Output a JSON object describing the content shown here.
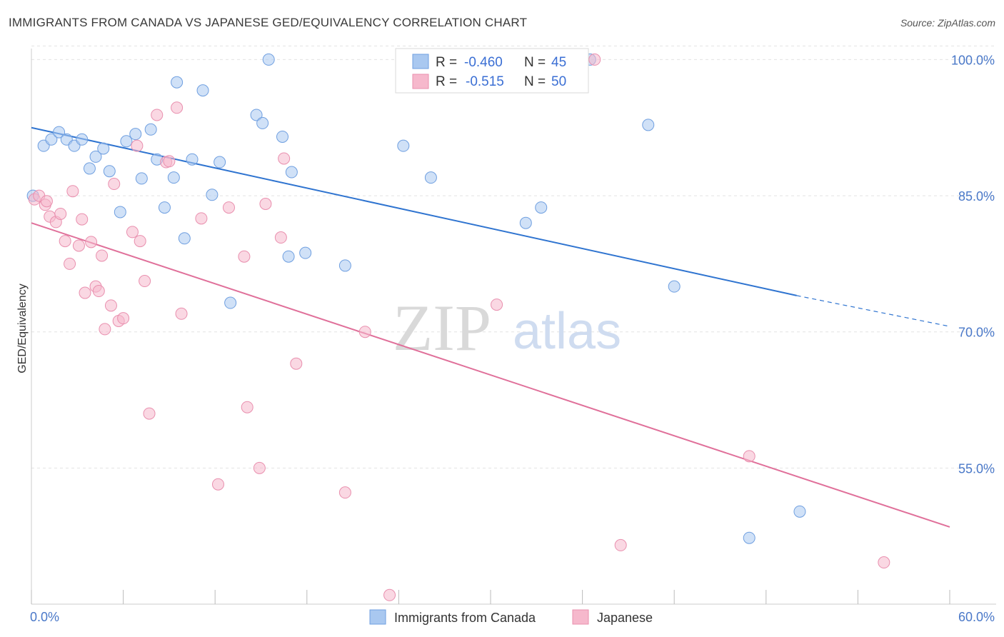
{
  "header": {
    "title": "IMMIGRANTS FROM CANADA VS JAPANESE GED/EQUIVALENCY CORRELATION CHART",
    "source": "Source: ZipAtlas.com"
  },
  "watermark": {
    "part1": "ZIP",
    "part2": "atlas"
  },
  "colors": {
    "blue_fill": "#a9c8f0",
    "blue_stroke": "#6f9fe0",
    "blue_line": "#2f74d0",
    "pink_fill": "#f6b8cc",
    "pink_stroke": "#e98fae",
    "pink_line": "#e0709a",
    "axis_text": "#4a78c8",
    "grid": "#e3e3e3"
  },
  "stats_box": {
    "rows": [
      {
        "r_label": "R =",
        "r_value": "-0.460",
        "n_label": "N =",
        "n_value": "45"
      },
      {
        "r_label": "R =",
        "r_value": "-0.515",
        "n_label": "N =",
        "n_value": "50"
      }
    ]
  },
  "chart_data": {
    "type": "scatter",
    "title": "IMMIGRANTS FROM CANADA VS JAPANESE GED/EQUIVALENCY CORRELATION CHART",
    "xlabel": "",
    "ylabel": "GED/Equivalency",
    "xlim": [
      0,
      60
    ],
    "ylim": [
      40,
      102
    ],
    "x_tick_labels": [
      "0.0%",
      "60.0%"
    ],
    "y_ticks": [
      100,
      85,
      70,
      55
    ],
    "y_tick_labels": [
      "100.0%",
      "85.0%",
      "70.0%",
      "55.0%"
    ],
    "grid": true,
    "legend_position": "bottom",
    "series": [
      {
        "name": "Immigrants from Canada",
        "color": "#a9c8f0",
        "trend": {
          "x": [
            0,
            50
          ],
          "y": [
            92.5,
            74.0
          ],
          "dashed_to": [
            60,
            70.6
          ]
        },
        "points": [
          [
            0.1,
            85.0
          ],
          [
            0.8,
            90.5
          ],
          [
            1.3,
            91.2
          ],
          [
            1.8,
            92.0
          ],
          [
            2.3,
            91.2
          ],
          [
            2.8,
            90.5
          ],
          [
            3.3,
            91.2
          ],
          [
            3.8,
            88.0
          ],
          [
            4.2,
            89.3
          ],
          [
            4.7,
            90.2
          ],
          [
            5.1,
            87.7
          ],
          [
            5.8,
            83.2
          ],
          [
            6.2,
            91.0
          ],
          [
            6.8,
            91.8
          ],
          [
            7.2,
            86.9
          ],
          [
            7.8,
            92.3
          ],
          [
            8.2,
            89.0
          ],
          [
            8.7,
            83.7
          ],
          [
            9.5,
            97.5
          ],
          [
            9.3,
            87.0
          ],
          [
            10.0,
            80.3
          ],
          [
            11.2,
            96.6
          ],
          [
            10.5,
            89.0
          ],
          [
            11.8,
            85.1
          ],
          [
            12.3,
            88.7
          ],
          [
            13.0,
            73.2
          ],
          [
            14.7,
            93.9
          ],
          [
            15.1,
            93.0
          ],
          [
            15.5,
            100.0
          ],
          [
            16.4,
            91.5
          ],
          [
            16.8,
            78.3
          ],
          [
            17.0,
            87.6
          ],
          [
            17.9,
            78.7
          ],
          [
            20.5,
            77.3
          ],
          [
            24.3,
            90.5
          ],
          [
            26.1,
            87.0
          ],
          [
            28.5,
            100.0
          ],
          [
            32.3,
            82.0
          ],
          [
            33.3,
            83.7
          ],
          [
            40.3,
            92.8
          ],
          [
            42.0,
            75.0
          ],
          [
            46.9,
            47.3
          ],
          [
            50.2,
            50.2
          ],
          [
            35.0,
            100.0
          ],
          [
            36.5,
            100.0
          ]
        ]
      },
      {
        "name": "Japanese",
        "color": "#f6b8cc",
        "trend": {
          "x": [
            0,
            60
          ],
          "y": [
            82.0,
            48.5
          ]
        },
        "points": [
          [
            0.2,
            84.6
          ],
          [
            0.5,
            85.0
          ],
          [
            0.9,
            84.0
          ],
          [
            1.2,
            82.7
          ],
          [
            1.6,
            82.1
          ],
          [
            1.9,
            83.0
          ],
          [
            2.2,
            80.0
          ],
          [
            2.5,
            77.5
          ],
          [
            2.7,
            85.5
          ],
          [
            3.1,
            79.5
          ],
          [
            3.3,
            82.4
          ],
          [
            3.5,
            74.3
          ],
          [
            3.9,
            79.9
          ],
          [
            4.2,
            75.0
          ],
          [
            4.4,
            74.5
          ],
          [
            4.6,
            78.4
          ],
          [
            4.8,
            70.3
          ],
          [
            5.2,
            72.9
          ],
          [
            5.4,
            86.3
          ],
          [
            5.7,
            71.2
          ],
          [
            6.0,
            71.5
          ],
          [
            6.6,
            81.0
          ],
          [
            6.9,
            90.5
          ],
          [
            7.1,
            80.0
          ],
          [
            7.4,
            75.6
          ],
          [
            7.7,
            61.0
          ],
          [
            8.2,
            93.9
          ],
          [
            8.8,
            88.7
          ],
          [
            9.5,
            94.7
          ],
          [
            9.8,
            72.0
          ],
          [
            11.1,
            82.5
          ],
          [
            12.2,
            53.2
          ],
          [
            12.9,
            83.7
          ],
          [
            13.9,
            78.3
          ],
          [
            14.1,
            61.7
          ],
          [
            14.9,
            55.0
          ],
          [
            15.3,
            84.1
          ],
          [
            16.3,
            80.4
          ],
          [
            16.5,
            89.1
          ],
          [
            17.3,
            66.5
          ],
          [
            20.5,
            52.3
          ],
          [
            21.8,
            70.0
          ],
          [
            23.4,
            41.0
          ],
          [
            30.4,
            73.0
          ],
          [
            36.8,
            100.0
          ],
          [
            38.5,
            46.5
          ],
          [
            46.9,
            56.3
          ],
          [
            55.7,
            44.6
          ],
          [
            1.0,
            84.4
          ],
          [
            9.0,
            88.8
          ]
        ]
      }
    ]
  },
  "legend": {
    "items": [
      {
        "label": "Immigrants from Canada"
      },
      {
        "label": "Japanese"
      }
    ]
  }
}
